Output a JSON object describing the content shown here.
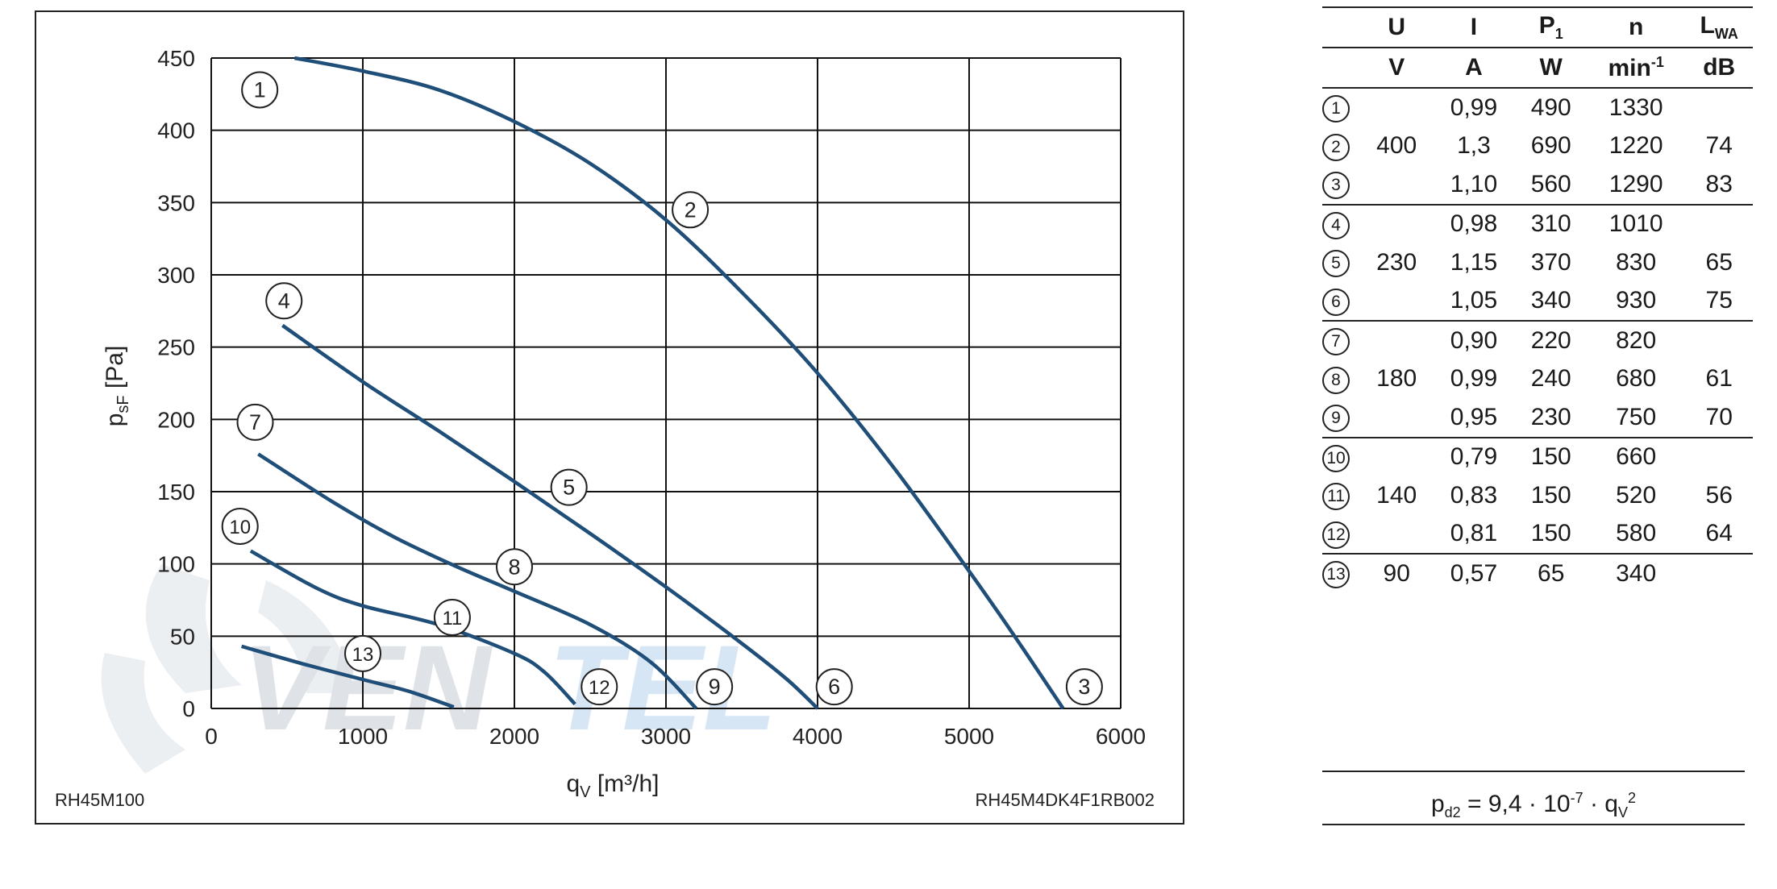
{
  "chart_data": {
    "type": "line",
    "xlabel": "q",
    "xlabel_sub": "V",
    "xlabel_unit": "[m³/h]",
    "ylabel": "p",
    "ylabel_sub": "sF",
    "ylabel_unit": "[Pa]",
    "xlim": [
      0,
      6000
    ],
    "ylim": [
      0,
      450
    ],
    "xticks": [
      0,
      1000,
      2000,
      3000,
      4000,
      5000,
      6000
    ],
    "yticks": [
      0,
      50,
      100,
      150,
      200,
      250,
      300,
      350,
      400,
      450
    ],
    "grid": true,
    "footer_left": "RH45M100",
    "footer_right": "RH45M4DK4F1RB002",
    "watermark": "VENTEL",
    "series_color": "#1f4e79",
    "series": [
      {
        "points": [
          [
            550,
            450
          ],
          [
            1000,
            441
          ],
          [
            1500,
            428
          ],
          [
            2000,
            406
          ],
          [
            2500,
            377
          ],
          [
            3000,
            338
          ],
          [
            3500,
            288
          ],
          [
            4000,
            232
          ],
          [
            4500,
            167
          ],
          [
            5000,
            95
          ],
          [
            5300,
            50
          ],
          [
            5620,
            0
          ]
        ]
      },
      {
        "points": [
          [
            470,
            265
          ],
          [
            1000,
            226
          ],
          [
            1500,
            192
          ],
          [
            2000,
            157
          ],
          [
            2500,
            121
          ],
          [
            3000,
            84
          ],
          [
            3500,
            45
          ],
          [
            3800,
            20
          ],
          [
            4000,
            0
          ]
        ]
      },
      {
        "points": [
          [
            310,
            176
          ],
          [
            800,
            143
          ],
          [
            1200,
            119
          ],
          [
            1600,
            99
          ],
          [
            2000,
            81
          ],
          [
            2500,
            58
          ],
          [
            2900,
            32
          ],
          [
            3200,
            0
          ]
        ]
      },
      {
        "points": [
          [
            260,
            109
          ],
          [
            700,
            83
          ],
          [
            1000,
            71
          ],
          [
            1500,
            58
          ],
          [
            2000,
            38
          ],
          [
            2200,
            25
          ],
          [
            2400,
            3
          ]
        ]
      },
      {
        "points": [
          [
            200,
            43
          ],
          [
            600,
            31
          ],
          [
            1000,
            20
          ],
          [
            1300,
            12
          ],
          [
            1600,
            1
          ]
        ]
      }
    ],
    "markers": [
      {
        "label": "1",
        "x": 320,
        "y": 428
      },
      {
        "label": "2",
        "x": 3160,
        "y": 345
      },
      {
        "label": "3",
        "x": 5760,
        "y": 15
      },
      {
        "label": "4",
        "x": 480,
        "y": 282
      },
      {
        "label": "5",
        "x": 2360,
        "y": 153
      },
      {
        "label": "6",
        "x": 4110,
        "y": 15
      },
      {
        "label": "7",
        "x": 290,
        "y": 198
      },
      {
        "label": "8",
        "x": 2000,
        "y": 98
      },
      {
        "label": "9",
        "x": 3320,
        "y": 15
      },
      {
        "label": "10",
        "x": 190,
        "y": 126
      },
      {
        "label": "11",
        "x": 1590,
        "y": 63
      },
      {
        "label": "12",
        "x": 2560,
        "y": 15
      },
      {
        "label": "13",
        "x": 1000,
        "y": 38
      }
    ]
  },
  "table": {
    "headers_top": [
      "",
      "U",
      "I",
      "P",
      "n",
      "L"
    ],
    "headers_top_sub": [
      "",
      "",
      "",
      "1",
      "",
      "WA"
    ],
    "headers_units": [
      "",
      "V",
      "A",
      "W",
      "min",
      "dB"
    ],
    "min_exponent": "-1",
    "rows": [
      {
        "num": "1",
        "U": "",
        "I": "0,99",
        "P": "490",
        "n": "1330",
        "L": ""
      },
      {
        "num": "2",
        "U": "400",
        "I": "1,3",
        "P": "690",
        "n": "1220",
        "L": "74"
      },
      {
        "num": "3",
        "U": "",
        "I": "1,10",
        "P": "560",
        "n": "1290",
        "L": "83"
      },
      {
        "num": "4",
        "U": "",
        "I": "0,98",
        "P": "310",
        "n": "1010",
        "L": ""
      },
      {
        "num": "5",
        "U": "230",
        "I": "1,15",
        "P": "370",
        "n": "830",
        "L": "65"
      },
      {
        "num": "6",
        "U": "",
        "I": "1,05",
        "P": "340",
        "n": "930",
        "L": "75"
      },
      {
        "num": "7",
        "U": "",
        "I": "0,90",
        "P": "220",
        "n": "820",
        "L": ""
      },
      {
        "num": "8",
        "U": "180",
        "I": "0,99",
        "P": "240",
        "n": "680",
        "L": "61"
      },
      {
        "num": "9",
        "U": "",
        "I": "0,95",
        "P": "230",
        "n": "750",
        "L": "70"
      },
      {
        "num": "10",
        "U": "",
        "I": "0,79",
        "P": "150",
        "n": "660",
        "L": ""
      },
      {
        "num": "11",
        "U": "140",
        "I": "0,83",
        "P": "150",
        "n": "520",
        "L": "56"
      },
      {
        "num": "12",
        "U": "",
        "I": "0,81",
        "P": "150",
        "n": "580",
        "L": "64"
      },
      {
        "num": "13",
        "U": "90",
        "I": "0,57",
        "P": "65",
        "n": "340",
        "L": ""
      }
    ]
  },
  "formula": {
    "lhs": "p",
    "lhs_sub": "d2",
    "eq": " = 9,4 · 10",
    "exp": "-7",
    "mul": " · q",
    "q_sub": "V",
    "q_exp": "2"
  }
}
